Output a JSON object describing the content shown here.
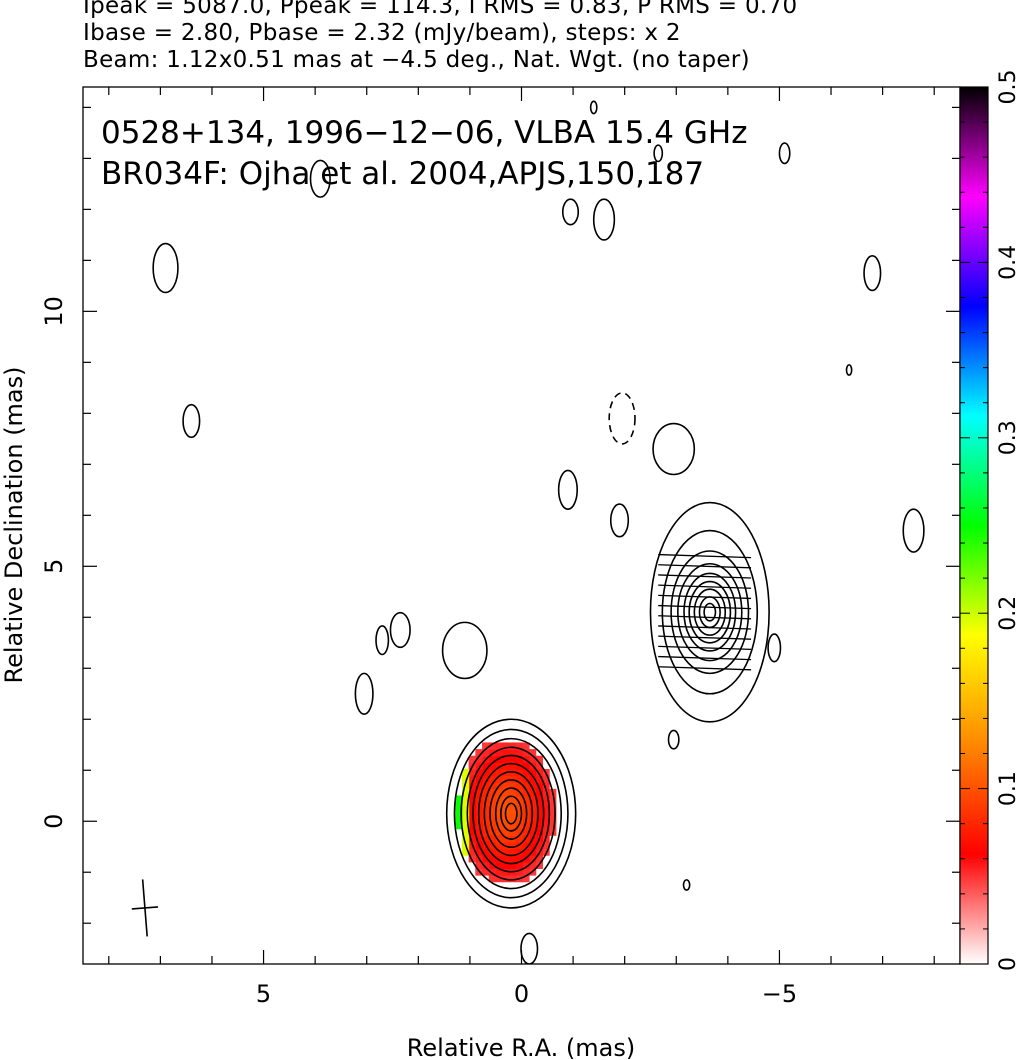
{
  "header": {
    "line1": "Ipeak = 5087.0, Ppeak = 114.3, I RMS = 0.83, P RMS = 0.70",
    "line2": "Ibase = 2.80, Pbase = 2.32 (mJy/beam), steps: x 2",
    "line3": "Beam: 1.12x0.51 mas at −4.5 deg., Nat. Wgt. (no taper)"
  },
  "chart_data": {
    "type": "heatmap",
    "subtype": "radio contour map with polarized-intensity color image",
    "annotation_line1": "0528+134, 1996−12−06, VLBA 15.4 GHz",
    "annotation_line2": "BR034F: Ojha et al. 2004,APJS,150,187",
    "xlabel": "Relative R.A. (mas)",
    "ylabel": "Relative Declination (mas)",
    "xlim": [
      8.5,
      -8.5
    ],
    "ylim": [
      -2.8,
      14.4
    ],
    "x_ticks": [
      {
        "value": 5,
        "label": "5"
      },
      {
        "value": 0,
        "label": "0"
      },
      {
        "value": -5,
        "label": "−5"
      }
    ],
    "y_ticks": [
      {
        "value": 0,
        "label": "0"
      },
      {
        "value": 5,
        "label": "5"
      },
      {
        "value": 10,
        "label": "10"
      }
    ],
    "colorbar": {
      "min": 0,
      "max": 0.5,
      "ticks": [
        {
          "value": 0,
          "label": "0"
        },
        {
          "value": 0.1,
          "label": "0.1"
        },
        {
          "value": 0.2,
          "label": "0.2"
        },
        {
          "value": 0.3,
          "label": "0.3"
        },
        {
          "value": 0.4,
          "label": "0.4"
        },
        {
          "value": 0.5,
          "label": "0.5"
        }
      ],
      "stops": [
        "#ffffff",
        "#ff0000",
        "#ff8800",
        "#ffff00",
        "#00ff00",
        "#00ffff",
        "#0000ff",
        "#ff00ff",
        "#000000"
      ]
    },
    "beam": {
      "major_mas": 1.12,
      "minor_mas": 0.51,
      "pa_deg": -4.5,
      "center": [
        7.3,
        -1.7
      ]
    },
    "contour_levels_mjy": [
      2.8,
      5.6,
      11.2,
      22.4,
      44.8,
      89.6,
      179.2,
      358.4,
      716.8,
      1433.6,
      2867.2
    ],
    "components": [
      {
        "name": "core",
        "center": [
          0.2,
          0.15
        ],
        "levels": [
          [
            1.25,
            1.85
          ],
          [
            1.1,
            1.65
          ],
          [
            0.97,
            1.47
          ],
          [
            0.85,
            1.3
          ],
          [
            0.74,
            1.14
          ],
          [
            0.63,
            0.98
          ],
          [
            0.52,
            0.82
          ],
          [
            0.41,
            0.66
          ],
          [
            0.3,
            0.5
          ],
          [
            0.2,
            0.34
          ],
          [
            0.11,
            0.2
          ]
        ]
      },
      {
        "name": "jet",
        "center": [
          -3.65,
          4.1
        ],
        "levels": [
          [
            1.15,
            2.15
          ],
          [
            0.92,
            1.6
          ],
          [
            0.75,
            1.2
          ],
          [
            0.62,
            0.95
          ],
          [
            0.5,
            0.76
          ],
          [
            0.4,
            0.6
          ],
          [
            0.3,
            0.45
          ],
          [
            0.2,
            0.3
          ],
          [
            0.11,
            0.17
          ]
        ]
      }
    ],
    "blobs": [
      {
        "center": [
          -0.9,
          6.5
        ],
        "rx": 0.18,
        "ry": 0.38
      },
      {
        "center": [
          -1.9,
          5.9
        ],
        "rx": 0.17,
        "ry": 0.32
      },
      {
        "center": [
          -2.95,
          7.3
        ],
        "rx": 0.4,
        "ry": 0.5
      },
      {
        "center": [
          -0.95,
          11.95
        ],
        "rx": 0.15,
        "ry": 0.25
      },
      {
        "center": [
          -1.6,
          11.8
        ],
        "rx": 0.2,
        "ry": 0.4
      },
      {
        "center": [
          3.9,
          12.6
        ],
        "rx": 0.19,
        "ry": 0.36
      },
      {
        "center": [
          6.9,
          10.85
        ],
        "rx": 0.24,
        "ry": 0.48
      },
      {
        "center": [
          6.4,
          7.85
        ],
        "rx": 0.16,
        "ry": 0.32
      },
      {
        "center": [
          2.35,
          3.75
        ],
        "rx": 0.19,
        "ry": 0.34
      },
      {
        "center": [
          2.7,
          3.55
        ],
        "rx": 0.12,
        "ry": 0.28
      },
      {
        "center": [
          1.1,
          3.35
        ],
        "rx": 0.43,
        "ry": 0.55
      },
      {
        "center": [
          3.05,
          2.5
        ],
        "rx": 0.17,
        "ry": 0.4
      },
      {
        "center": [
          -2.95,
          1.6
        ],
        "rx": 0.1,
        "ry": 0.18
      },
      {
        "center": [
          -4.9,
          3.4
        ],
        "rx": 0.12,
        "ry": 0.27
      },
      {
        "center": [
          -7.6,
          5.7
        ],
        "rx": 0.2,
        "ry": 0.42
      },
      {
        "center": [
          -6.8,
          10.75
        ],
        "rx": 0.16,
        "ry": 0.34
      },
      {
        "center": [
          -5.1,
          13.1
        ],
        "rx": 0.1,
        "ry": 0.2
      },
      {
        "center": [
          -2.65,
          13.1
        ],
        "rx": 0.08,
        "ry": 0.16
      },
      {
        "center": [
          -1.4,
          14.0
        ],
        "rx": 0.06,
        "ry": 0.12
      },
      {
        "center": [
          -0.15,
          -2.5
        ],
        "rx": 0.16,
        "ry": 0.3
      },
      {
        "center": [
          -3.2,
          -1.25
        ],
        "rx": 0.06,
        "ry": 0.1
      },
      {
        "center": [
          -6.35,
          8.85
        ],
        "rx": 0.05,
        "ry": 0.1
      }
    ],
    "dashed_contours": [
      {
        "center": [
          -1.95,
          7.9
        ],
        "rx": 0.25,
        "ry": 0.5
      }
    ],
    "polarization_region": {
      "x_range": [
        -0.6,
        1.35
      ],
      "y_range": [
        -1.25,
        1.55
      ],
      "peak": [
        0.3,
        0.2
      ],
      "peak_fraction": 0.1
    }
  }
}
